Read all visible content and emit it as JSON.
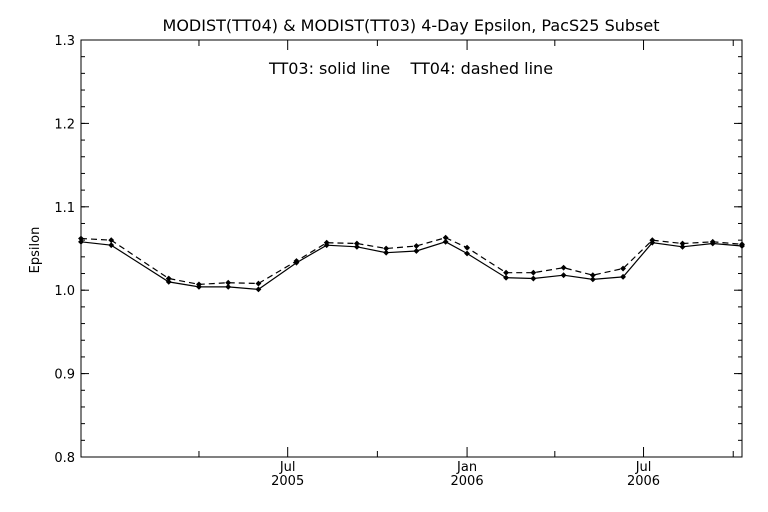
{
  "chart_data": {
    "type": "line",
    "title": "MODIST(TT04) & MODIST(TT03) 4-Day Epsilon, PacS25 Subset",
    "annotation": "TT03: solid line    TT04: dashed line",
    "xlabel": "",
    "ylabel": "Epsilon",
    "ylim": [
      0.8,
      1.3
    ],
    "xlim": [
      "2004-12-01",
      "2006-10-10"
    ],
    "yticks": [
      "0.8",
      "0.9",
      "1.0",
      "1.1",
      "1.2",
      "1.3"
    ],
    "xticks": [
      {
        "date": "2005-07-01",
        "month": "Jul",
        "year": "2005"
      },
      {
        "date": "2006-01-01",
        "month": "Jan",
        "year": "2006"
      },
      {
        "date": "2006-07-01",
        "month": "Jul",
        "year": "2006"
      }
    ],
    "x": [
      "2004-12-01",
      "2005-01-01",
      "2005-03-01",
      "2005-04-01",
      "2005-05-01",
      "2005-06-01",
      "2005-07-10",
      "2005-08-10",
      "2005-09-10",
      "2005-10-10",
      "2005-11-10",
      "2005-12-10",
      "2006-01-01",
      "2006-02-10",
      "2006-03-10",
      "2006-04-10",
      "2006-05-10",
      "2006-06-10",
      "2006-07-10",
      "2006-08-10",
      "2006-09-10",
      "2006-10-10"
    ],
    "series": [
      {
        "name": "TT03",
        "style": "solid",
        "values": [
          1.058,
          1.054,
          1.01,
          1.004,
          1.004,
          1.001,
          1.033,
          1.054,
          1.052,
          1.045,
          1.047,
          1.058,
          1.044,
          1.015,
          1.014,
          1.018,
          1.013,
          1.016,
          1.057,
          1.052,
          1.056,
          1.053
        ]
      },
      {
        "name": "TT04",
        "style": "dashed",
        "values": [
          1.062,
          1.06,
          1.014,
          1.007,
          1.009,
          1.008,
          1.035,
          1.057,
          1.056,
          1.05,
          1.053,
          1.063,
          1.051,
          1.021,
          1.021,
          1.027,
          1.018,
          1.026,
          1.06,
          1.056,
          1.058,
          1.055
        ]
      }
    ],
    "grid": false,
    "colors": {
      "line": "#000000",
      "background": "#ffffff"
    }
  }
}
